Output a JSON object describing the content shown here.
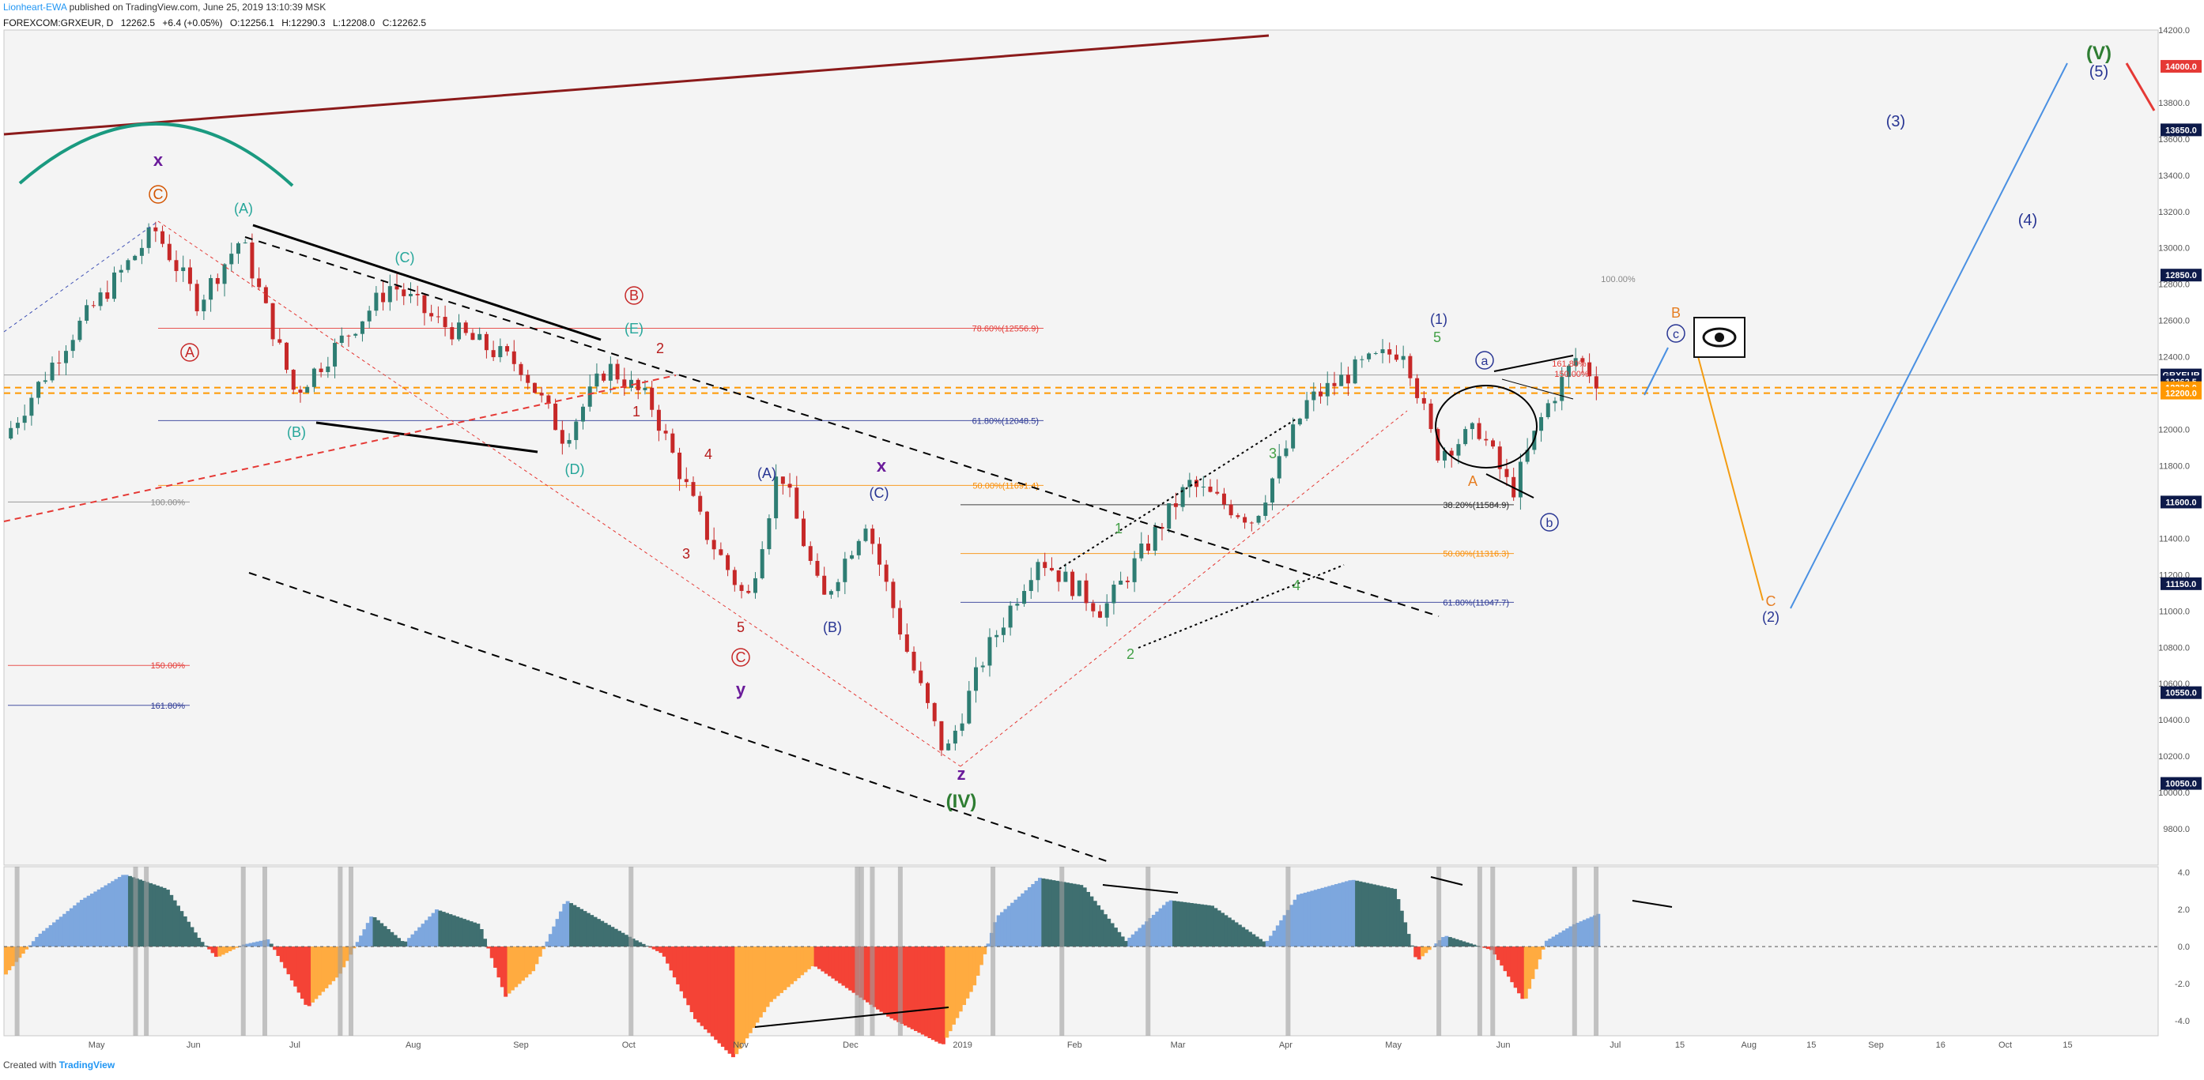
{
  "header": {
    "author": "Lionheart-EWA",
    "published": "published on TradingView.com, June 25, 2019 13:10:39 MSK",
    "symbol": "FOREXCOM:GRXEUR, D",
    "last": "12262.5",
    "change": "+6.4 (+0.05%)",
    "open": "O:12256.1",
    "high": "H:12290.3",
    "low": "L:12208.0",
    "close": "C:12262.5"
  },
  "footer": {
    "created": "Created with",
    "brand": "TradingView"
  },
  "colors": {
    "up": "#2e7d73",
    "down": "#c62828",
    "bg": "#f4f4f4",
    "osc_pos_dark": "#3f6f70",
    "osc_pos_light": "#7da7de",
    "osc_neg_red": "#f44336",
    "osc_neg_orange": "#ffab40"
  },
  "chart_data": {
    "type": "candlestick",
    "symbol": "GRXEUR",
    "timeframe": "D",
    "ylim": [
      9600,
      14200
    ],
    "yticks": [
      "14200.0",
      "13800.0",
      "13600.0",
      "13400.0",
      "13200.0",
      "13000.0",
      "12800.0",
      "12600.0",
      "12400.0",
      "12000.0",
      "11800.0",
      "11400.0",
      "11200.0",
      "11000.0",
      "10800.0",
      "10600.0",
      "10400.0",
      "10200.0",
      "10000.0",
      "9800.0"
    ],
    "highlighted_levels": [
      {
        "label": "14000.0",
        "value": 14000,
        "color": "#e53935"
      },
      {
        "label": "13650.0",
        "value": 13650,
        "color": "#0d1a4a"
      },
      {
        "label": "12850.0",
        "value": 12850,
        "color": "#0d1a4a"
      },
      {
        "label": "GRXEUR",
        "value": 12300,
        "color": "#0d1a4a"
      },
      {
        "label": "12262.5",
        "value": 12262.5,
        "color": "#0d1a4a"
      },
      {
        "label": "12230.0",
        "value": 12230,
        "color": "#ff9800"
      },
      {
        "label": "12200.0",
        "value": 12200,
        "color": "#ff9800"
      },
      {
        "label": "11600.0",
        "value": 11600,
        "color": "#0d1a4a"
      },
      {
        "label": "11150.0",
        "value": 11150,
        "color": "#0d1a4a"
      },
      {
        "label": "10550.0",
        "value": 10550,
        "color": "#0d1a4a"
      },
      {
        "label": "10050.0",
        "value": 10050,
        "color": "#0d1a4a"
      }
    ],
    "xticks": [
      "May",
      "Jun",
      "Jul",
      "Aug",
      "Sep",
      "Oct",
      "Nov",
      "Dec",
      "2019",
      "Feb",
      "Mar",
      "Apr",
      "May",
      "Jun",
      "Jul",
      "15",
      "Aug",
      "15",
      "Sep",
      "16",
      "Oct",
      "15"
    ],
    "price_path": [
      {
        "t": 0,
        "p": 11950
      },
      {
        "t": 0.03,
        "p": 12500
      },
      {
        "t": 0.07,
        "p": 13100
      },
      {
        "t": 0.09,
        "p": 12700
      },
      {
        "t": 0.11,
        "p": 13050
      },
      {
        "t": 0.135,
        "p": 12200
      },
      {
        "t": 0.18,
        "p": 12800
      },
      {
        "t": 0.2,
        "p": 12600
      },
      {
        "t": 0.24,
        "p": 12350
      },
      {
        "t": 0.26,
        "p": 11950
      },
      {
        "t": 0.28,
        "p": 12350
      },
      {
        "t": 0.3,
        "p": 12150
      },
      {
        "t": 0.325,
        "p": 11450
      },
      {
        "t": 0.345,
        "p": 11050
      },
      {
        "t": 0.36,
        "p": 11800
      },
      {
        "t": 0.38,
        "p": 11050
      },
      {
        "t": 0.4,
        "p": 11500
      },
      {
        "t": 0.42,
        "p": 10750
      },
      {
        "t": 0.437,
        "p": 10200
      },
      {
        "t": 0.455,
        "p": 10750
      },
      {
        "t": 0.48,
        "p": 11300
      },
      {
        "t": 0.51,
        "p": 11000
      },
      {
        "t": 0.53,
        "p": 11350
      },
      {
        "t": 0.55,
        "p": 11700
      },
      {
        "t": 0.58,
        "p": 11500
      },
      {
        "t": 0.605,
        "p": 12150
      },
      {
        "t": 0.63,
        "p": 12350
      },
      {
        "t": 0.65,
        "p": 12450
      },
      {
        "t": 0.665,
        "p": 11870
      },
      {
        "t": 0.685,
        "p": 12000
      },
      {
        "t": 0.7,
        "p": 11650
      },
      {
        "t": 0.715,
        "p": 12100
      },
      {
        "t": 0.73,
        "p": 12400
      },
      {
        "t": 0.74,
        "p": 12262.5
      }
    ],
    "fib_levels": [
      {
        "label": "78.60%(12556.9)",
        "value": 12556.9,
        "color": "#e53935"
      },
      {
        "label": "61.80%(12048.5)",
        "value": 12048.5,
        "color": "#283593"
      },
      {
        "label": "50.00%(11691.4)",
        "value": 11691.4,
        "color": "#fb8c00"
      },
      {
        "label": "100.00%",
        "value": 11600,
        "color": "#888888"
      },
      {
        "label": "150.00%",
        "value": 10700,
        "color": "#e53935"
      },
      {
        "label": "161.80%",
        "value": 10480,
        "color": "#283593"
      },
      {
        "label": "38.20%(11584.9)",
        "value": 11584.9,
        "color": "#222222"
      },
      {
        "label": "50.00%(11316.3)",
        "value": 11316.3,
        "color": "#fb8c00"
      },
      {
        "label": "61.80%(11047.7)",
        "value": 11047.7,
        "color": "#283593"
      }
    ],
    "wave_labels": [
      "x",
      "C",
      "A",
      "(A)",
      "(B)",
      "(C)",
      "(D)",
      "(E)",
      "B",
      "1",
      "2",
      "3",
      "4",
      "5",
      "C",
      "y",
      "(A)",
      "x",
      "(C)",
      "(B)",
      "z",
      "(IV)",
      "1",
      "2",
      "3",
      "4",
      "5",
      "(1)",
      "A",
      "a",
      "b",
      "c",
      "B",
      "C",
      "(2)",
      "(3)",
      "(4)",
      "(5)",
      "(V)",
      "100.00%",
      "161.80%",
      "150.00%"
    ],
    "oscillator": {
      "yticks": [
        "4.0",
        "2.0",
        "0.0",
        "-2.0",
        "-4.0"
      ],
      "ylim": [
        -4.8,
        4.3
      ],
      "values": [
        {
          "t": 0,
          "v": -1.5
        },
        {
          "t": 0.015,
          "v": 0.6
        },
        {
          "t": 0.035,
          "v": 2.5
        },
        {
          "t": 0.055,
          "v": 3.9
        },
        {
          "t": 0.075,
          "v": 3.1
        },
        {
          "t": 0.09,
          "v": 0.4
        },
        {
          "t": 0.098,
          "v": -0.6
        },
        {
          "t": 0.11,
          "v": 0.1
        },
        {
          "t": 0.122,
          "v": 0.4
        },
        {
          "t": 0.14,
          "v": -3.3
        },
        {
          "t": 0.155,
          "v": -1.5
        },
        {
          "t": 0.17,
          "v": 1.7
        },
        {
          "t": 0.185,
          "v": 0.2
        },
        {
          "t": 0.2,
          "v": 2.0
        },
        {
          "t": 0.22,
          "v": 1.2
        },
        {
          "t": 0.232,
          "v": -2.7
        },
        {
          "t": 0.245,
          "v": -1.3
        },
        {
          "t": 0.26,
          "v": 2.5
        },
        {
          "t": 0.275,
          "v": 1.5
        },
        {
          "t": 0.29,
          "v": 0.5
        },
        {
          "t": 0.305,
          "v": -0.4
        },
        {
          "t": 0.32,
          "v": -3.9
        },
        {
          "t": 0.338,
          "v": -6.0
        },
        {
          "t": 0.355,
          "v": -3.0
        },
        {
          "t": 0.375,
          "v": -1.0
        },
        {
          "t": 0.39,
          "v": -2.2
        },
        {
          "t": 0.41,
          "v": -3.8
        },
        {
          "t": 0.435,
          "v": -5.3
        },
        {
          "t": 0.45,
          "v": -2.0
        },
        {
          "t": 0.46,
          "v": 1.6
        },
        {
          "t": 0.48,
          "v": 3.7
        },
        {
          "t": 0.5,
          "v": 3.3
        },
        {
          "t": 0.52,
          "v": 0.3
        },
        {
          "t": 0.54,
          "v": 2.5
        },
        {
          "t": 0.56,
          "v": 2.2
        },
        {
          "t": 0.585,
          "v": 0.2
        },
        {
          "t": 0.6,
          "v": 2.8
        },
        {
          "t": 0.625,
          "v": 3.6
        },
        {
          "t": 0.645,
          "v": 3.1
        },
        {
          "t": 0.655,
          "v": -0.8
        },
        {
          "t": 0.668,
          "v": 0.6
        },
        {
          "t": 0.69,
          "v": -0.2
        },
        {
          "t": 0.705,
          "v": -3.0
        },
        {
          "t": 0.715,
          "v": 0.3
        },
        {
          "t": 0.728,
          "v": 1.2
        },
        {
          "t": 0.74,
          "v": 1.8
        }
      ]
    }
  }
}
